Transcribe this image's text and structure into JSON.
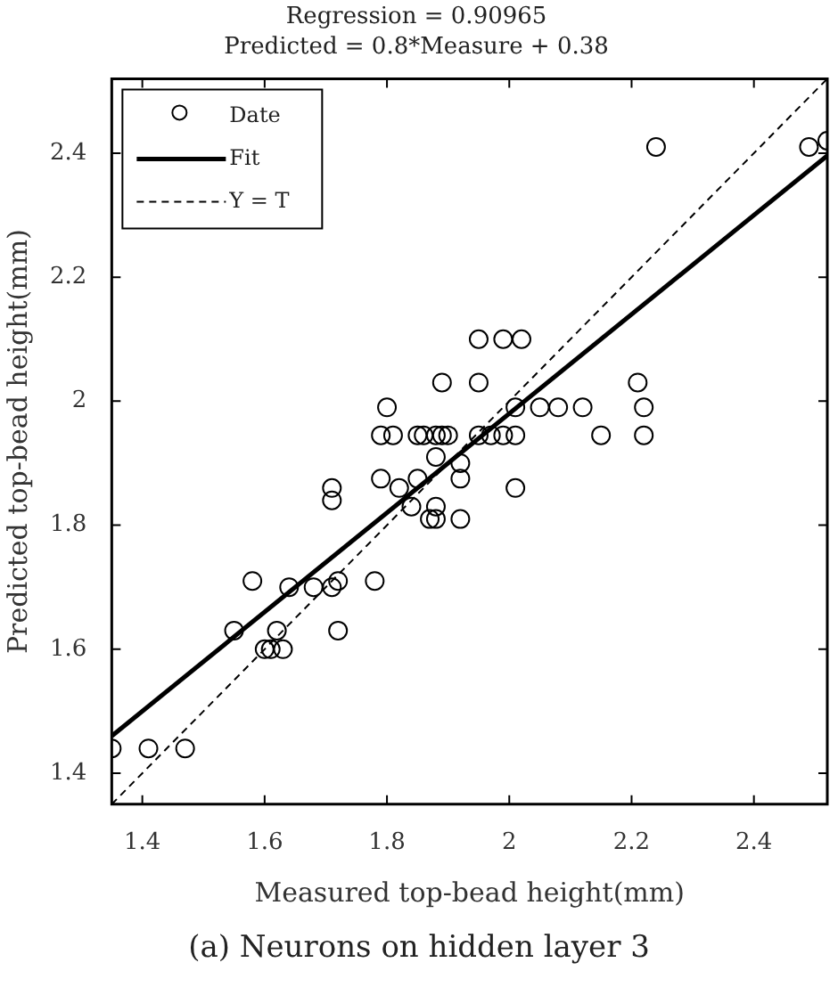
{
  "chart_data": {
    "type": "scatter",
    "title": "Regression = 0.90965",
    "subtitle": "Predicted = 0.8*Measure + 0.38",
    "xlabel": "Measured top-bead height(mm)",
    "ylabel": "Predicted top-bead height(mm)",
    "annotations": [
      "(a) Neurons on hidden layer 3"
    ],
    "xlim": [
      1.35,
      2.52
    ],
    "ylim": [
      1.35,
      2.52
    ],
    "xticks": [
      1.4,
      1.6,
      1.8,
      2,
      2.2,
      2.4
    ],
    "yticks": [
      1.4,
      1.6,
      1.8,
      2,
      2.2,
      2.4
    ],
    "legend": "top left",
    "series": [
      {
        "name": "Date",
        "type": "scatter",
        "marker": "circle",
        "color": "#000000",
        "x": [
          1.35,
          1.41,
          1.47,
          1.55,
          1.58,
          1.6,
          1.61,
          1.63,
          1.62,
          1.64,
          1.68,
          1.71,
          1.72,
          1.72,
          1.71,
          1.71,
          1.78,
          1.8,
          1.79,
          1.81,
          1.85,
          1.86,
          1.88,
          1.89,
          1.79,
          1.82,
          1.85,
          1.88,
          1.84,
          1.88,
          1.87,
          1.88,
          1.92,
          1.92,
          1.9,
          1.92,
          1.95,
          1.97,
          1.99,
          2.01,
          2.01,
          2.05,
          2.08,
          2.12,
          2.01,
          2.15,
          2.22,
          2.22,
          2.24,
          2.49,
          2.52,
          1.95,
          1.99,
          2.02,
          1.95,
          2.21,
          1.89
        ],
        "values": [
          1.44,
          1.44,
          1.44,
          1.63,
          1.71,
          1.6,
          1.6,
          1.6,
          1.63,
          1.7,
          1.7,
          1.7,
          1.71,
          1.63,
          1.86,
          1.84,
          1.71,
          1.99,
          1.945,
          1.945,
          1.945,
          1.945,
          1.945,
          1.945,
          1.875,
          1.86,
          1.875,
          1.91,
          1.83,
          1.83,
          1.81,
          1.81,
          1.875,
          1.81,
          1.945,
          1.9,
          1.945,
          1.945,
          1.945,
          1.945,
          1.99,
          1.99,
          1.99,
          1.99,
          1.86,
          1.945,
          1.99,
          1.945,
          2.41,
          2.41,
          2.42,
          2.1,
          2.1,
          2.1,
          2.03,
          2.03,
          2.03
        ]
      },
      {
        "name": "Fit",
        "type": "line",
        "marker": "none",
        "line_style": "solid",
        "color": "#000000",
        "x": [
          1.35,
          2.52
        ],
        "values": [
          1.46,
          2.396
        ]
      },
      {
        "name": "Y = T",
        "type": "line",
        "marker": "none",
        "line_style": "dashed",
        "color": "#000000",
        "x": [
          1.35,
          2.52
        ],
        "values": [
          1.35,
          2.52
        ]
      }
    ]
  }
}
